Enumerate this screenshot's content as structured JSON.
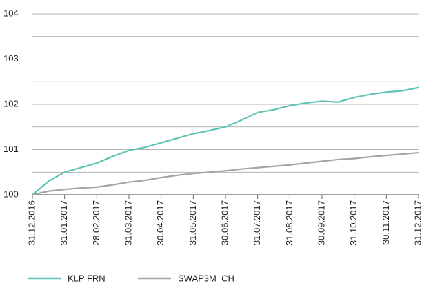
{
  "chart_data": {
    "type": "line",
    "categories": [
      "31.12.2016",
      null,
      "31.01.2017",
      null,
      "28.02.2017",
      null,
      "31.03.2017",
      null,
      "30.04.2017",
      null,
      "31.05.2017",
      null,
      "30.06.2017",
      null,
      "31.07.2017",
      null,
      "31.08.2017",
      null,
      "30.09.2017",
      null,
      "31.10.2017",
      null,
      "30.11.2017",
      null,
      "31.12.2017"
    ],
    "series": [
      {
        "name": "KLP FRN",
        "color": "#5fc4b4",
        "values": [
          100.0,
          100.3,
          100.5,
          100.6,
          100.7,
          100.85,
          100.98,
          101.05,
          101.15,
          101.25,
          101.35,
          101.42,
          101.5,
          101.65,
          101.82,
          101.88,
          101.97,
          102.03,
          102.07,
          102.05,
          102.15,
          102.22,
          102.27,
          102.3,
          102.37
        ]
      },
      {
        "name": "SWAP3M_CH",
        "color": "#a3a3a3",
        "values": [
          100.0,
          100.08,
          100.12,
          100.15,
          100.17,
          100.22,
          100.28,
          100.32,
          100.38,
          100.43,
          100.47,
          100.5,
          100.53,
          100.57,
          100.6,
          100.63,
          100.66,
          100.7,
          100.74,
          100.78,
          100.8,
          100.84,
          100.87,
          100.9,
          100.93
        ]
      }
    ],
    "ylim": [
      100,
      104
    ],
    "yticks": [
      100,
      101,
      102,
      103,
      104
    ],
    "yticks_minor": [
      100.5,
      101.5,
      102.5,
      103.5
    ],
    "grid": true,
    "legend": "bottom"
  }
}
